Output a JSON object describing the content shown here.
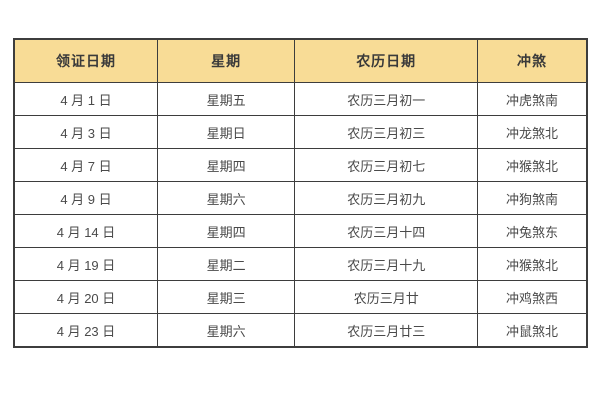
{
  "chart_data": {
    "type": "table",
    "headers": [
      "领证日期",
      "星期",
      "农历日期",
      "冲煞"
    ],
    "rows": [
      [
        "4 月 1 日",
        "星期五",
        "农历三月初一",
        "冲虎煞南"
      ],
      [
        "4 月 3 日",
        "星期日",
        "农历三月初三",
        "冲龙煞北"
      ],
      [
        "4 月 7 日",
        "星期四",
        "农历三月初七",
        "冲猴煞北"
      ],
      [
        "4 月 9 日",
        "星期六",
        "农历三月初九",
        "冲狗煞南"
      ],
      [
        "4 月 14 日",
        "星期四",
        "农历三月十四",
        "冲兔煞东"
      ],
      [
        "4 月 19 日",
        "星期二",
        "农历三月十九",
        "冲猴煞北"
      ],
      [
        "4 月 20 日",
        "星期三",
        "农历三月廿",
        "冲鸡煞西"
      ],
      [
        "4 月 23 日",
        "星期六",
        "农历三月廿三",
        "冲鼠煞北"
      ]
    ],
    "layout": {
      "grid": "on",
      "header_position": "top"
    }
  },
  "colors": {
    "header_background": "#f8dc96",
    "grid_border": "#3d3d3d",
    "header_text": "#3a3a3a",
    "cell_text": "#4a4a4a",
    "page_background": "#ffffff"
  }
}
